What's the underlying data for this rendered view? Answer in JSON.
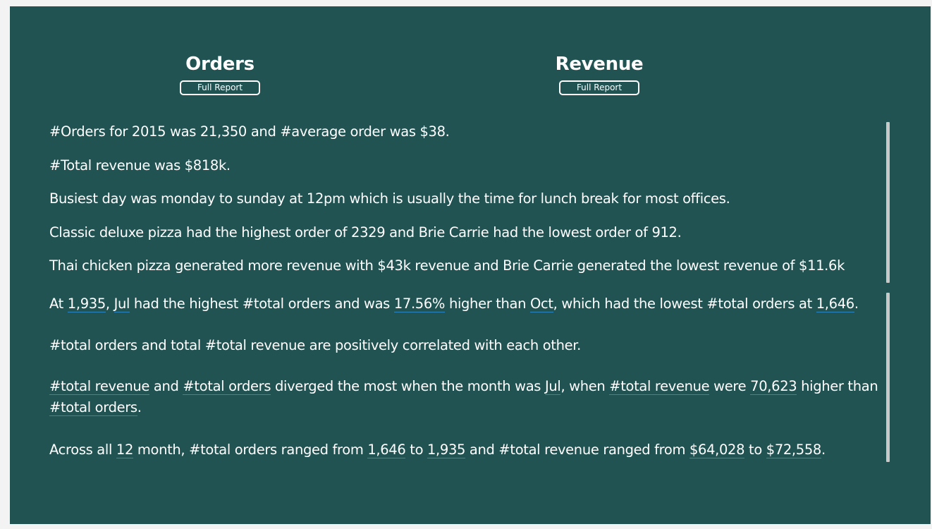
{
  "headers": {
    "orders": {
      "title": "Orders",
      "button_label": "Full Report"
    },
    "revenue": {
      "title": "Revenue",
      "button_label": "Full Report"
    }
  },
  "summary": {
    "line1": "#Orders for 2015 was 21,350 and #average order was $38.",
    "line2": "#Total revenue was $818k.",
    "line3": "Busiest day was monday to sunday at 12pm which is usually the time for lunch break for most offices.",
    "line4": "Classic deluxe pizza had the highest order of 2329 and Brie Carrie  had the lowest order of 912.",
    "line5": "Thai chicken pizza generated more revenue with $43k revenue and Brie Carrie generated the lowest revenue of $11.6k"
  },
  "narrative": {
    "p1": {
      "t1": "At ",
      "v1": "1,935",
      "t2": ", ",
      "v2": "Jul",
      "t3": " had the highest #total orders and was ",
      "v3": "17.56%",
      "t4": " higher than ",
      "v4": "Oct",
      "t5": ", which had the lowest #total orders at ",
      "v5": "1,646",
      "t6": "."
    },
    "p2": "#total orders and total #total revenue are positively correlated with each other.",
    "p3": {
      "v1": "#total revenue",
      "t1": " and ",
      "v2": "#total orders",
      "t2": " diverged the most when the month was ",
      "v3": "Jul",
      "t3": ", when ",
      "v4": "#total revenue",
      "t4": " were ",
      "v5": "70,623",
      "t5": " higher than ",
      "v6": "#total orders",
      "t6": "."
    },
    "p4": {
      "t1": "Across all ",
      "v1": "12",
      "t2": " month, #total orders ranged from ",
      "v2": "1,646",
      "t3": " to ",
      "v3": "1,935",
      "t4": " and #total revenue ranged from ",
      "v4": "$64,028",
      "t5": " to ",
      "v5": "$72,558",
      "t6": "."
    }
  }
}
